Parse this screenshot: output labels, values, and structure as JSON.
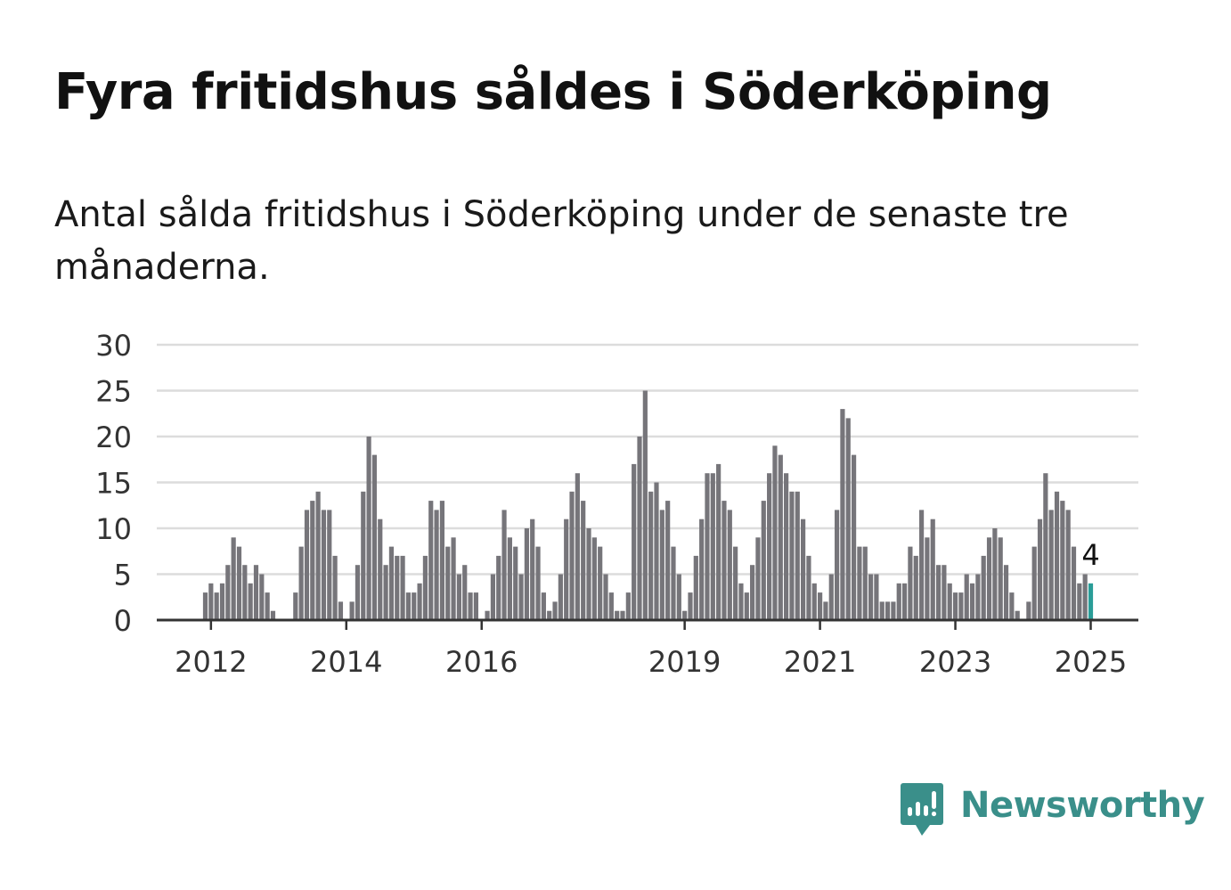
{
  "title": "Fyra fritidshus såldes i Söderköping",
  "subtitle": "Antal sålda fritidshus i Söderköping under de senaste tre månaderna.",
  "brand": {
    "name": "Newsworthy",
    "icon": "newsworthy-chart-icon",
    "color": "#3a8f8a"
  },
  "chart_data": {
    "type": "bar",
    "title": "",
    "xlabel": "",
    "ylabel": "",
    "ylim": [
      0,
      30
    ],
    "y_ticks": [
      "0",
      "5",
      "10",
      "15",
      "20",
      "25",
      "30"
    ],
    "x_ticks": [
      {
        "label": "2012",
        "date": "2012-01"
      },
      {
        "label": "2014",
        "date": "2014-01"
      },
      {
        "label": "2016",
        "date": "2016-01"
      },
      {
        "label": "2019",
        "date": "2019-01"
      },
      {
        "label": "2021",
        "date": "2021-01"
      },
      {
        "label": "2023",
        "date": "2023-01"
      },
      {
        "label": "2025",
        "date": "2025-01"
      }
    ],
    "grid": true,
    "legend": "none",
    "bar_color": "#76757a",
    "highlight_color": "#2a9d98",
    "highlight_label": "4",
    "months": [
      "2011-12",
      "2012-01",
      "2012-02",
      "2012-03",
      "2012-04",
      "2012-05",
      "2012-06",
      "2012-07",
      "2012-08",
      "2012-09",
      "2012-10",
      "2012-11",
      "2012-12",
      "2013-01",
      "2013-02",
      "2013-03",
      "2013-04",
      "2013-05",
      "2013-06",
      "2013-07",
      "2013-08",
      "2013-09",
      "2013-10",
      "2013-11",
      "2013-12",
      "2014-01",
      "2014-02",
      "2014-03",
      "2014-04",
      "2014-05",
      "2014-06",
      "2014-07",
      "2014-08",
      "2014-09",
      "2014-10",
      "2014-11",
      "2014-12",
      "2015-01",
      "2015-02",
      "2015-03",
      "2015-04",
      "2015-05",
      "2015-06",
      "2015-07",
      "2015-08",
      "2015-09",
      "2015-10",
      "2015-11",
      "2015-12",
      "2016-01",
      "2016-02",
      "2016-03",
      "2016-04",
      "2016-05",
      "2016-06",
      "2016-07",
      "2016-08",
      "2016-09",
      "2016-10",
      "2016-11",
      "2016-12",
      "2017-01",
      "2017-02",
      "2017-03",
      "2017-04",
      "2017-05",
      "2017-06",
      "2017-07",
      "2017-08",
      "2017-09",
      "2017-10",
      "2017-11",
      "2017-12",
      "2018-01",
      "2018-02",
      "2018-03",
      "2018-04",
      "2018-05",
      "2018-06",
      "2018-07",
      "2018-08",
      "2018-09",
      "2018-10",
      "2018-11",
      "2018-12",
      "2019-01",
      "2019-02",
      "2019-03",
      "2019-04",
      "2019-05",
      "2019-06",
      "2019-07",
      "2019-08",
      "2019-09",
      "2019-10",
      "2019-11",
      "2019-12",
      "2020-01",
      "2020-02",
      "2020-03",
      "2020-04",
      "2020-05",
      "2020-06",
      "2020-07",
      "2020-08",
      "2020-09",
      "2020-10",
      "2020-11",
      "2020-12",
      "2021-01",
      "2021-02",
      "2021-03",
      "2021-04",
      "2021-05",
      "2021-06",
      "2021-07",
      "2021-08",
      "2021-09",
      "2021-10",
      "2021-11",
      "2021-12",
      "2022-01",
      "2022-02",
      "2022-03",
      "2022-04",
      "2022-05",
      "2022-06",
      "2022-07",
      "2022-08",
      "2022-09",
      "2022-10",
      "2022-11",
      "2022-12",
      "2023-01",
      "2023-02",
      "2023-03",
      "2023-04",
      "2023-05",
      "2023-06",
      "2023-07",
      "2023-08",
      "2023-09",
      "2023-10",
      "2023-11",
      "2023-12",
      "2024-01",
      "2024-02",
      "2024-03",
      "2024-04",
      "2024-05",
      "2024-06",
      "2024-07",
      "2024-08",
      "2024-09",
      "2024-10",
      "2024-11",
      "2024-12",
      "2025-01"
    ],
    "values": [
      3,
      4,
      3,
      4,
      6,
      9,
      8,
      6,
      4,
      6,
      5,
      3,
      1,
      0,
      0,
      0,
      3,
      8,
      12,
      13,
      14,
      12,
      12,
      7,
      2,
      0,
      2,
      6,
      14,
      20,
      18,
      11,
      6,
      8,
      7,
      7,
      3,
      3,
      4,
      7,
      13,
      12,
      13,
      8,
      9,
      5,
      6,
      3,
      3,
      0,
      1,
      5,
      7,
      12,
      9,
      8,
      5,
      10,
      11,
      8,
      3,
      1,
      2,
      5,
      11,
      14,
      16,
      13,
      10,
      9,
      8,
      5,
      3,
      1,
      1,
      3,
      17,
      20,
      25,
      14,
      15,
      12,
      13,
      8,
      5,
      1,
      3,
      7,
      11,
      16,
      16,
      17,
      13,
      12,
      8,
      4,
      3,
      6,
      9,
      13,
      16,
      19,
      18,
      16,
      14,
      14,
      11,
      7,
      4,
      3,
      2,
      5,
      12,
      23,
      22,
      18,
      8,
      8,
      5,
      5,
      2,
      2,
      2,
      4,
      4,
      8,
      7,
      12,
      9,
      11,
      6,
      6,
      4,
      3,
      3,
      5,
      4,
      5,
      7,
      9,
      10,
      9,
      6,
      3,
      1,
      0,
      2,
      8,
      11,
      16,
      12,
      14,
      13,
      12,
      8,
      4,
      5,
      4
    ]
  }
}
